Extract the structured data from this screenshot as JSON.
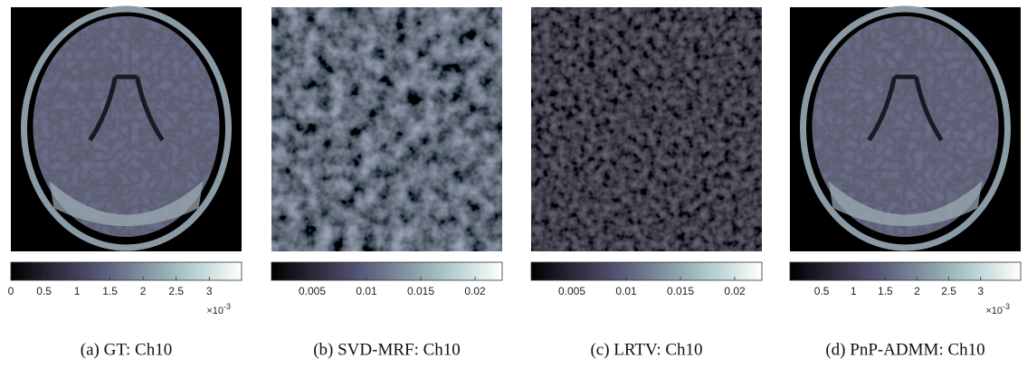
{
  "panels": [
    {
      "caption": "(a) GT: Ch10",
      "colorbar": {
        "lim": [
          0,
          3.49
        ],
        "ticks": [
          0,
          0.5,
          1,
          1.5,
          2,
          2.5,
          3
        ],
        "exponent": {
          "base": "×10",
          "power": "-3"
        }
      }
    },
    {
      "caption": "(b) SVD-MRF: Ch10",
      "colorbar": {
        "lim": [
          0.00125,
          0.0225
        ],
        "ticks": [
          0.005,
          0.01,
          0.015,
          0.02
        ]
      }
    },
    {
      "caption": "(c) LRTV: Ch10",
      "colorbar": {
        "lim": [
          0.00125,
          0.0225
        ],
        "ticks": [
          0.005,
          0.01,
          0.015,
          0.02
        ]
      }
    },
    {
      "caption": "(d) PnP-ADMM: Ch10",
      "colorbar": {
        "lim": [
          0,
          3.63
        ],
        "ticks": [
          0.5,
          1,
          1.5,
          2,
          2.5,
          3
        ],
        "exponent": {
          "base": "×10",
          "power": "-3"
        }
      }
    }
  ]
}
